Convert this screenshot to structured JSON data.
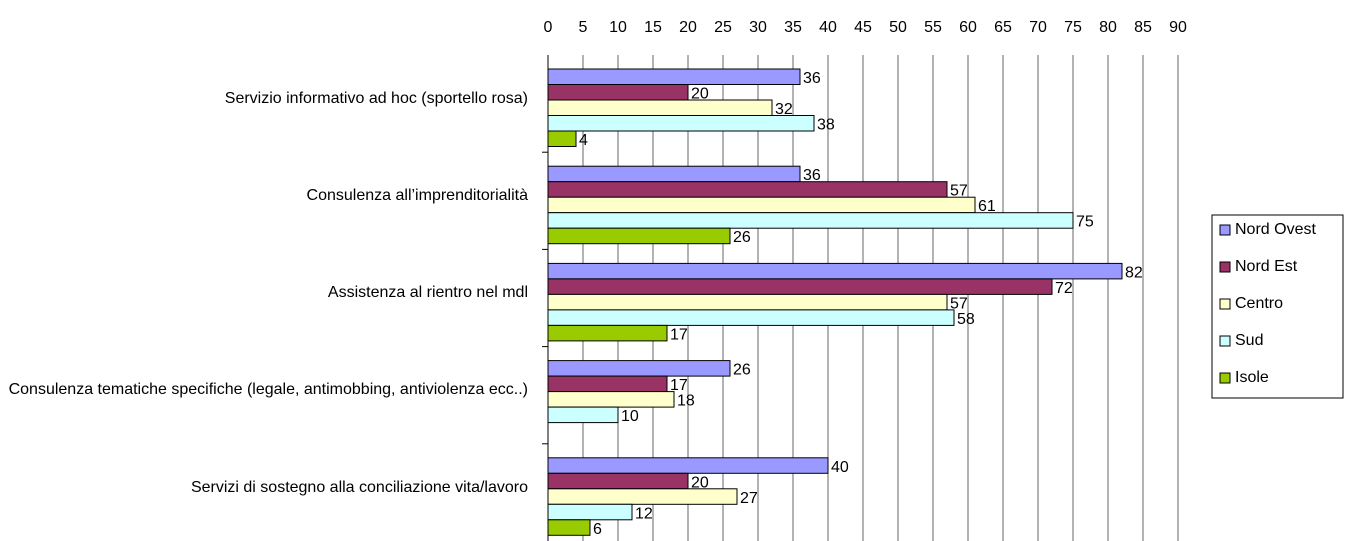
{
  "chart_data": {
    "type": "bar",
    "orientation": "horizontal",
    "categories": [
      "Servizio informativo ad hoc (sportello rosa)",
      "Consulenza all’imprenditorialità",
      "Assistenza al rientro nel mdl",
      "Consulenza tematiche specifiche (legale, antimobbing, antiviolenza ecc..)",
      "Servizi di sostegno alla conciliazione vita/lavoro"
    ],
    "series": [
      {
        "name": "Nord Ovest",
        "color": "#9999ff",
        "values": [
          36,
          36,
          82,
          26,
          40
        ]
      },
      {
        "name": "Nord Est",
        "color": "#993366",
        "values": [
          20,
          57,
          72,
          17,
          20
        ]
      },
      {
        "name": "Centro",
        "color": "#ffffcc",
        "values": [
          32,
          61,
          57,
          18,
          27
        ]
      },
      {
        "name": "Sud",
        "color": "#ccffff",
        "values": [
          38,
          75,
          58,
          10,
          12
        ]
      },
      {
        "name": "Isole",
        "color": "#99cc00",
        "values": [
          4,
          26,
          17,
          null,
          6
        ]
      }
    ],
    "xlim": [
      0,
      90
    ],
    "xticks": [
      0,
      5,
      10,
      15,
      20,
      25,
      30,
      35,
      40,
      45,
      50,
      55,
      60,
      65,
      70,
      75,
      80,
      85,
      90
    ],
    "grid": true,
    "legend": "right"
  }
}
